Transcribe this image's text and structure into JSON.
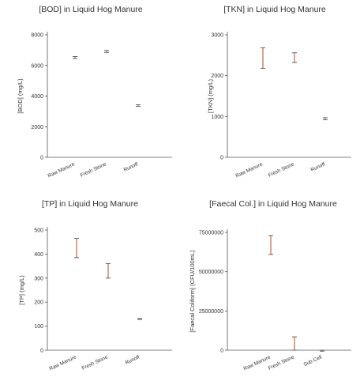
{
  "chart_data": [
    {
      "type": "errorbar",
      "title": "[BOD] in Liquid Hog Manure",
      "ylabel": "[BOD] (mg/L)",
      "xlabel": "",
      "ylim": [
        0,
        8000
      ],
      "yticks": [
        0,
        2000,
        4000,
        6000,
        8000
      ],
      "yticklabels": [
        "0",
        "2000",
        "4000",
        "6000",
        "8000"
      ],
      "categories": [
        "Raw Manure",
        "Fresh Stone",
        "Runoff"
      ],
      "points": [
        {
          "low": 6450,
          "high": 6580,
          "mean": 6520
        },
        {
          "low": 6850,
          "high": 6980,
          "mean": 6920
        },
        {
          "low": 3330,
          "high": 3430,
          "mean": 3380
        }
      ],
      "grid": false
    },
    {
      "type": "errorbar",
      "title": "[TKN] in Liquid Hog Manure",
      "ylabel": "[TKN] (mg/L)",
      "xlabel": "",
      "ylim": [
        0,
        3000
      ],
      "yticks": [
        0,
        1000,
        2000,
        3000
      ],
      "yticklabels": [
        "0",
        "1000",
        "2000",
        "3000"
      ],
      "categories": [
        "Raw Manure",
        "Fresh Stone",
        "Runoff"
      ],
      "points": [
        {
          "low": 2180,
          "high": 2680,
          "mean": 2430
        },
        {
          "low": 2320,
          "high": 2560,
          "mean": 2440
        },
        {
          "low": 920,
          "high": 970,
          "mean": 945
        }
      ],
      "grid": false
    },
    {
      "type": "errorbar",
      "title": "[TP] in Liquid Hog Manure",
      "ylabel": "[TP] (mg/L)",
      "xlabel": "",
      "ylim": [
        0,
        500
      ],
      "yticks": [
        0,
        100,
        200,
        300,
        400,
        500
      ],
      "yticklabels": [
        "0",
        "100",
        "200",
        "300",
        "400",
        "500"
      ],
      "categories": [
        "Raw Manure",
        "Fresh Stone",
        "Runoff"
      ],
      "points": [
        {
          "low": 385,
          "high": 465,
          "mean": 425
        },
        {
          "low": 300,
          "high": 360,
          "mean": 330
        },
        {
          "low": 129,
          "high": 132,
          "mean": 130
        }
      ],
      "grid": false
    },
    {
      "type": "errorbar",
      "title": "[Faecal Col.] in Liquid Hog Manure",
      "ylabel": "[Faecal Coliform] (CFU/100mL)",
      "xlabel": "",
      "ylim": [
        0,
        75000000
      ],
      "yticks": [
        0,
        25000000,
        50000000,
        75000000
      ],
      "yticklabels": [
        "0",
        "25000000",
        "50000000",
        "75000000"
      ],
      "categories": [
        "Raw Manure",
        "Fresh Stone",
        "Sub Cell"
      ],
      "points": [
        {
          "low": 61000000,
          "high": 73000000,
          "mean": 67000000
        },
        {
          "low": 0,
          "high": 8500000,
          "mean": 4000000
        },
        {
          "low": 0,
          "high": 0,
          "mean": 0
        }
      ],
      "grid": false
    }
  ]
}
